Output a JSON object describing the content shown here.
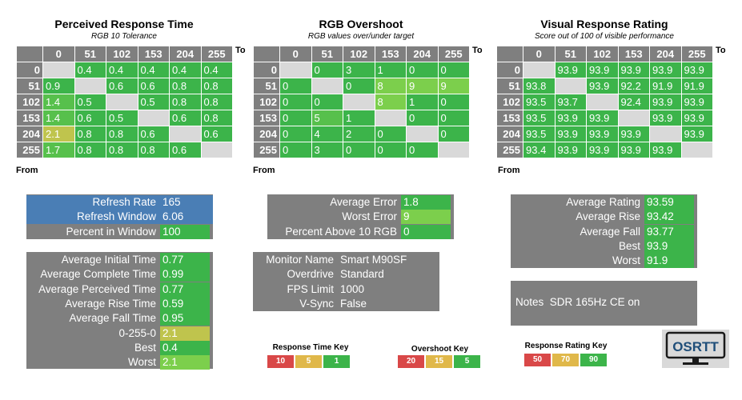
{
  "colors": {
    "good": "#3cb44a",
    "good_mid": "#57c04c",
    "good_light": "#7ccf4c",
    "warn": "#bfc44d",
    "bad": "#d94848",
    "mid": "#e0b84a",
    "panel_grey": "#7f7f7f",
    "panel_blue": "#4a7eb5",
    "diag": "#d9d9d9"
  },
  "response_time": {
    "title": "Perceived Response Time",
    "subtitle": "RGB 10 Tolerance",
    "to_label": "To",
    "from_label": "From",
    "cols": [
      "0",
      "51",
      "102",
      "153",
      "204",
      "255"
    ],
    "rows": [
      {
        "label": "0",
        "cells": [
          "",
          "0.4",
          "0.4",
          "0.4",
          "0.4",
          "0.4"
        ]
      },
      {
        "label": "51",
        "cells": [
          "0.9",
          "",
          "0.6",
          "0.6",
          "0.8",
          "0.8"
        ]
      },
      {
        "label": "102",
        "cells": [
          "1.4",
          "0.5",
          "",
          "0.5",
          "0.8",
          "0.8"
        ]
      },
      {
        "label": "153",
        "cells": [
          "1.4",
          "0.6",
          "0.5",
          "",
          "0.6",
          "0.8"
        ]
      },
      {
        "label": "204",
        "cells": [
          "2.1",
          "0.8",
          "0.8",
          "0.6",
          "",
          "0.6"
        ]
      },
      {
        "label": "255",
        "cells": [
          "1.7",
          "0.8",
          "0.8",
          "0.8",
          "0.6",
          ""
        ]
      }
    ]
  },
  "overshoot": {
    "title": "RGB Overshoot",
    "subtitle": "RGB values over/under target",
    "to_label": "To",
    "from_label": "From",
    "cols": [
      "0",
      "51",
      "102",
      "153",
      "204",
      "255"
    ],
    "rows": [
      {
        "label": "0",
        "cells": [
          "",
          "0",
          "3",
          "1",
          "0",
          "0"
        ]
      },
      {
        "label": "51",
        "cells": [
          "0",
          "",
          "0",
          "8",
          "9",
          "9"
        ]
      },
      {
        "label": "102",
        "cells": [
          "0",
          "0",
          "",
          "8",
          "1",
          "0"
        ]
      },
      {
        "label": "153",
        "cells": [
          "0",
          "5",
          "1",
          "",
          "0",
          "0"
        ]
      },
      {
        "label": "204",
        "cells": [
          "0",
          "4",
          "2",
          "0",
          "",
          "0"
        ]
      },
      {
        "label": "255",
        "cells": [
          "0",
          "3",
          "0",
          "0",
          "0",
          ""
        ]
      }
    ]
  },
  "rating": {
    "title": "Visual Response Rating",
    "subtitle": "Score out of 100 of visible performance",
    "to_label": "To",
    "from_label": "From",
    "cols": [
      "0",
      "51",
      "102",
      "153",
      "204",
      "255"
    ],
    "rows": [
      {
        "label": "0",
        "cells": [
          "",
          "93.9",
          "93.9",
          "93.9",
          "93.9",
          "93.9"
        ]
      },
      {
        "label": "51",
        "cells": [
          "93.8",
          "",
          "93.9",
          "92.2",
          "91.9",
          "91.9"
        ]
      },
      {
        "label": "102",
        "cells": [
          "93.5",
          "93.7",
          "",
          "92.4",
          "93.9",
          "93.9"
        ]
      },
      {
        "label": "153",
        "cells": [
          "93.5",
          "93.9",
          "93.9",
          "",
          "93.9",
          "93.9"
        ]
      },
      {
        "label": "204",
        "cells": [
          "93.5",
          "93.9",
          "93.9",
          "93.9",
          "",
          "93.9"
        ]
      },
      {
        "label": "255",
        "cells": [
          "93.4",
          "93.9",
          "93.9",
          "93.9",
          "93.9",
          ""
        ]
      }
    ]
  },
  "refresh_panel": {
    "rows": [
      {
        "label": "Refresh Rate",
        "value": "165"
      },
      {
        "label": "Refresh Window",
        "value": "6.06"
      },
      {
        "label": "Percent in Window",
        "value": "100"
      }
    ]
  },
  "times_panel": {
    "rows": [
      {
        "label": "Average Initial Time",
        "value": "0.77"
      },
      {
        "label": "Average Complete Time",
        "value": "0.99"
      },
      {
        "label": "Average Perceived Time",
        "value": "0.77"
      },
      {
        "label": "Average Rise Time",
        "value": "0.59"
      },
      {
        "label": "Average Fall Time",
        "value": "0.95"
      },
      {
        "label": "0-255-0",
        "value": "2.1"
      },
      {
        "label": "Best",
        "value": "0.4"
      },
      {
        "label": "Worst",
        "value": "2.1"
      }
    ]
  },
  "error_panel": {
    "rows": [
      {
        "label": "Average Error",
        "value": "1.8"
      },
      {
        "label": "Worst Error",
        "value": "9"
      },
      {
        "label": "Percent Above 10 RGB",
        "value": "0"
      }
    ]
  },
  "monitor_panel": {
    "rows": [
      {
        "label": "Monitor Name",
        "value": "Smart M90SF"
      },
      {
        "label": "Overdrive",
        "value": "Standard"
      },
      {
        "label": "FPS Limit",
        "value": "1000"
      },
      {
        "label": "V-Sync",
        "value": "False"
      }
    ]
  },
  "rating_panel": {
    "rows": [
      {
        "label": "Average Rating",
        "value": "93.59"
      },
      {
        "label": "Average Rise",
        "value": "93.42"
      },
      {
        "label": "Average Fall",
        "value": "93.77"
      },
      {
        "label": "Best",
        "value": "93.9"
      },
      {
        "label": "Worst",
        "value": "91.9"
      }
    ]
  },
  "notes": {
    "label": "Notes",
    "value": "SDR 165Hz CE on"
  },
  "keys": {
    "response_time": {
      "title": "Response Time Key",
      "values": [
        "10",
        "5",
        "1"
      ]
    },
    "overshoot": {
      "title": "Overshoot Key",
      "values": [
        "20",
        "15",
        "5"
      ]
    },
    "rating": {
      "title": "Response Rating Key",
      "values": [
        "50",
        "70",
        "90"
      ]
    }
  },
  "logo": {
    "text": "OSRTT"
  }
}
